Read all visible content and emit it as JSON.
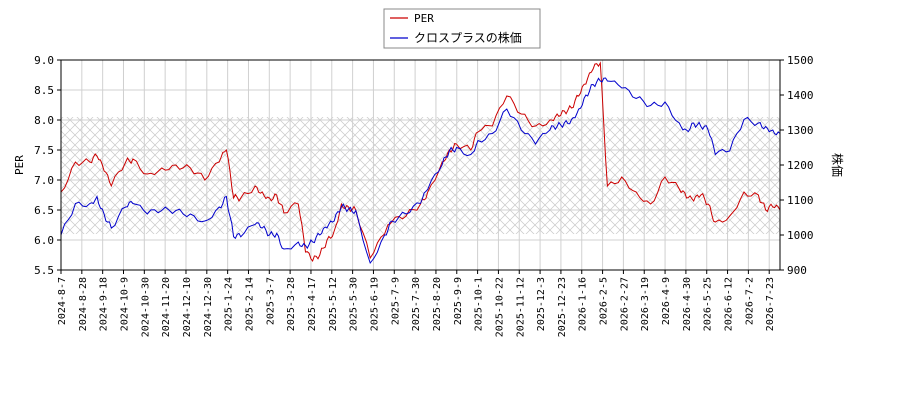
{
  "chart_data": {
    "type": "line",
    "legend": {
      "placement": "top-center",
      "entries": [
        "PER",
        "クロスプラスの株価"
      ]
    },
    "left_axis": {
      "label": "PER",
      "ylim": [
        5.5,
        9.0
      ],
      "ticks": [
        "5.5",
        "6.0",
        "6.5",
        "7.0",
        "7.5",
        "8.0",
        "8.5",
        "9.0"
      ]
    },
    "right_axis": {
      "label": "株価",
      "ylim": [
        900,
        1500
      ],
      "ticks": [
        "900",
        "1000",
        "1100",
        "1200",
        "1300",
        "1400",
        "1500"
      ]
    },
    "x_ticks": [
      "2024-8-7",
      "2024-8-28",
      "2024-9-18",
      "2024-10-9",
      "2024-10-30",
      "2024-11-20",
      "2024-12-10",
      "2024-12-30",
      "2025-1-24",
      "2025-2-14",
      "2025-3-7",
      "2025-3-28",
      "2025-4-17",
      "2025-5-12",
      "2025-5-30",
      "2025-6-19",
      "2025-7-9",
      "2025-7-30",
      "2025-8-20",
      "2025-9-9",
      "2025-10-1",
      "2025-10-22",
      "2025-11-12",
      "2025-12-3",
      "2025-12-23",
      "2026-1-16",
      "2026-2-5",
      "2026-2-27",
      "2026-3-19",
      "2026-4-9",
      "2026-4-30",
      "2026-5-25",
      "2026-6-12",
      "2026-7-2",
      "2026-7-23"
    ],
    "grid": true,
    "hatched_band": [
      6.1,
      8.05
    ],
    "series": [
      {
        "name": "PER",
        "axis": "left",
        "color": "#cc0000",
        "x": [
          0,
          0.02,
          0.04,
          0.05,
          0.06,
          0.07,
          0.09,
          0.1,
          0.12,
          0.14,
          0.16,
          0.18,
          0.2,
          0.22,
          0.23,
          0.24,
          0.25,
          0.27,
          0.28,
          0.29,
          0.3,
          0.31,
          0.33,
          0.34,
          0.35,
          0.36,
          0.37,
          0.38,
          0.39,
          0.4,
          0.41,
          0.43,
          0.45,
          0.46,
          0.48,
          0.5,
          0.51,
          0.53,
          0.54,
          0.55,
          0.57,
          0.58,
          0.6,
          0.62,
          0.64,
          0.66,
          0.68,
          0.69,
          0.7,
          0.71,
          0.72,
          0.73,
          0.74,
          0.75,
          0.76,
          0.78,
          0.8,
          0.82,
          0.84,
          0.86,
          0.87,
          0.88,
          0.89,
          0.9,
          0.91,
          0.93,
          0.95,
          0.97,
          0.98,
          0.99,
          1.0
        ],
        "values": [
          6.8,
          7.3,
          7.3,
          7.4,
          7.15,
          6.9,
          7.3,
          7.35,
          7.1,
          7.2,
          7.25,
          7.2,
          7.0,
          7.3,
          7.5,
          6.7,
          6.7,
          6.9,
          6.8,
          6.7,
          6.75,
          6.45,
          6.6,
          5.8,
          5.65,
          5.75,
          6.0,
          6.15,
          6.6,
          6.55,
          6.5,
          5.7,
          6.1,
          6.3,
          6.4,
          6.6,
          6.8,
          7.3,
          7.5,
          7.6,
          7.5,
          7.8,
          7.9,
          8.4,
          8.1,
          7.9,
          8.0,
          8.1,
          8.15,
          8.2,
          8.4,
          8.6,
          8.85,
          8.95,
          6.9,
          7.05,
          6.8,
          6.6,
          7.05,
          6.85,
          6.7,
          6.65,
          6.75,
          6.6,
          6.3,
          6.4,
          6.8,
          6.75,
          6.5,
          6.55,
          6.5
        ],
        "label_key": "PER"
      },
      {
        "name": "クロスプラスの株価",
        "axis": "right",
        "color": "#0000cc",
        "x": [
          0,
          0.02,
          0.04,
          0.05,
          0.06,
          0.07,
          0.09,
          0.1,
          0.12,
          0.14,
          0.16,
          0.18,
          0.2,
          0.22,
          0.23,
          0.24,
          0.25,
          0.27,
          0.28,
          0.29,
          0.3,
          0.31,
          0.33,
          0.34,
          0.35,
          0.36,
          0.37,
          0.38,
          0.39,
          0.4,
          0.41,
          0.43,
          0.45,
          0.46,
          0.48,
          0.5,
          0.51,
          0.53,
          0.54,
          0.55,
          0.57,
          0.58,
          0.6,
          0.62,
          0.64,
          0.66,
          0.68,
          0.69,
          0.7,
          0.71,
          0.72,
          0.73,
          0.74,
          0.75,
          0.76,
          0.78,
          0.8,
          0.82,
          0.84,
          0.86,
          0.87,
          0.88,
          0.89,
          0.9,
          0.91,
          0.93,
          0.95,
          0.97,
          0.98,
          0.99,
          1.0
        ],
        "values": [
          1000,
          1090,
          1090,
          1110,
          1060,
          1020,
          1080,
          1090,
          1060,
          1070,
          1070,
          1060,
          1040,
          1080,
          1110,
          995,
          995,
          1030,
          1020,
          1000,
          1005,
          960,
          980,
          970,
          980,
          1000,
          1020,
          1040,
          1080,
          1075,
          1070,
          920,
          1000,
          1040,
          1060,
          1090,
          1130,
          1200,
          1240,
          1250,
          1230,
          1270,
          1290,
          1360,
          1300,
          1260,
          1300,
          1310,
          1320,
          1330,
          1360,
          1400,
          1430,
          1440,
          1440,
          1420,
          1390,
          1370,
          1380,
          1320,
          1300,
          1320,
          1310,
          1300,
          1230,
          1240,
          1330,
          1320,
          1310,
          1300,
          1290
        ]
      }
    ]
  }
}
